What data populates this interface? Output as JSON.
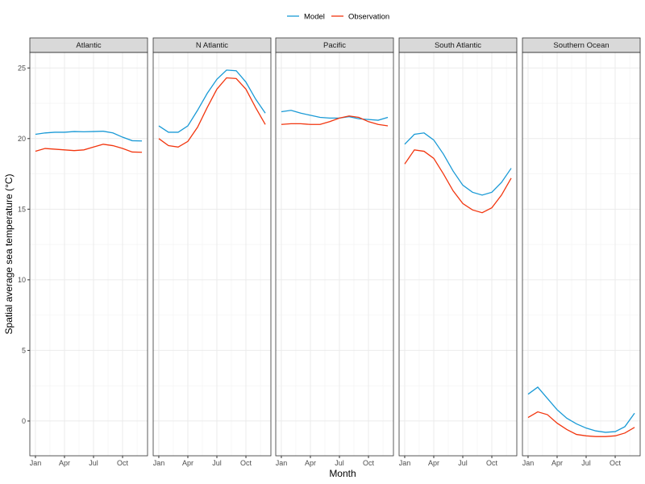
{
  "chart_data": {
    "type": "line",
    "xlabel": "Month",
    "ylabel": "Spatial average sea temperature (°C)",
    "x_tick_labels": [
      "Jan",
      "Apr",
      "Jul",
      "Oct"
    ],
    "x_tick_months": [
      1,
      4,
      7,
      10
    ],
    "x": [
      1,
      2,
      3,
      4,
      5,
      6,
      7,
      8,
      9,
      10,
      11,
      12
    ],
    "y_ticks": [
      0,
      5,
      10,
      15,
      20,
      25
    ],
    "ylim": [
      -2.46,
      26.1
    ],
    "grid": true,
    "legend": {
      "position": "top",
      "entries": [
        "Model",
        "Observation"
      ]
    },
    "colors": {
      "Model": "#1a9ad6",
      "Observation": "#f2360f"
    },
    "panels": [
      {
        "title": "Atlantic",
        "series": [
          {
            "name": "Model",
            "values": [
              20.3,
              20.4,
              20.45,
              20.45,
              20.5,
              20.48,
              20.5,
              20.52,
              20.4,
              20.1,
              19.85,
              19.83
            ]
          },
          {
            "name": "Observation",
            "values": [
              19.1,
              19.3,
              19.25,
              19.2,
              19.15,
              19.2,
              19.4,
              19.6,
              19.5,
              19.3,
              19.05,
              19.03
            ]
          }
        ]
      },
      {
        "title": "N Atlantic",
        "series": [
          {
            "name": "Model",
            "values": [
              20.9,
              20.45,
              20.45,
              20.9,
              22.0,
              23.2,
              24.2,
              24.85,
              24.8,
              24.0,
              22.8,
              21.8
            ]
          },
          {
            "name": "Observation",
            "values": [
              20.0,
              19.5,
              19.4,
              19.8,
              20.8,
              22.2,
              23.5,
              24.3,
              24.25,
              23.5,
              22.2,
              21.0
            ]
          }
        ]
      },
      {
        "title": "Pacific",
        "series": [
          {
            "name": "Model",
            "values": [
              21.9,
              22.0,
              21.8,
              21.65,
              21.5,
              21.45,
              21.45,
              21.55,
              21.4,
              21.35,
              21.3,
              21.5
            ]
          },
          {
            "name": "Observation",
            "values": [
              21.0,
              21.05,
              21.05,
              21.0,
              21.0,
              21.2,
              21.45,
              21.6,
              21.5,
              21.2,
              21.0,
              20.9
            ]
          }
        ]
      },
      {
        "title": "South Atlantic",
        "series": [
          {
            "name": "Model",
            "values": [
              19.6,
              20.3,
              20.4,
              19.9,
              18.9,
              17.7,
              16.7,
              16.2,
              16.0,
              16.2,
              16.9,
              17.9
            ]
          },
          {
            "name": "Observation",
            "values": [
              18.2,
              19.2,
              19.1,
              18.6,
              17.5,
              16.3,
              15.4,
              14.95,
              14.75,
              15.1,
              16.0,
              17.2
            ]
          }
        ]
      },
      {
        "title": "Southern Ocean",
        "series": [
          {
            "name": "Model",
            "values": [
              1.9,
              2.4,
              1.6,
              0.8,
              0.2,
              -0.2,
              -0.5,
              -0.7,
              -0.8,
              -0.75,
              -0.4,
              0.55
            ]
          },
          {
            "name": "Observation",
            "values": [
              0.25,
              0.65,
              0.45,
              -0.15,
              -0.6,
              -0.95,
              -1.05,
              -1.1,
              -1.1,
              -1.05,
              -0.85,
              -0.45
            ]
          }
        ]
      }
    ]
  }
}
